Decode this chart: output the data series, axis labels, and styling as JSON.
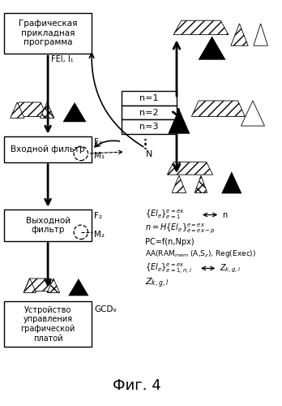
{
  "bg_color": "#ffffff",
  "box1_text": "Графическая\nприкладная\nпрограмма",
  "box2_text": "Входной фильтр",
  "box3_text": "Выходной\nфильтр",
  "box4_text": "Устройство\nуправления\nграфической\nплатой",
  "n_labels": [
    "n=1",
    "n=2",
    "n=3"
  ],
  "label_FEI": "FEI, I₁",
  "label_F1": "F₁",
  "label_M1": "M₁",
  "label_F2": "F₂",
  "label_M2": "M₂",
  "label_GCD": "GCD₉",
  "title": "Фиг. 4"
}
